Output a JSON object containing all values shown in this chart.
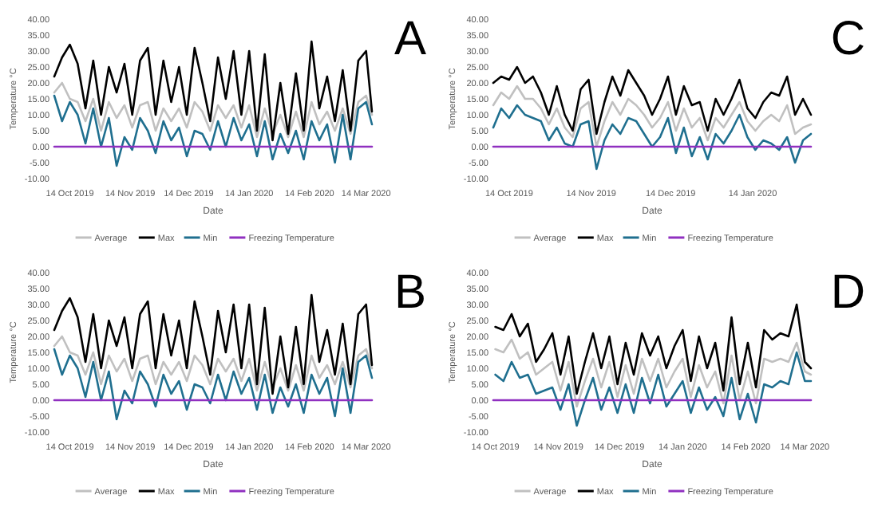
{
  "chart_data": [
    {
      "type": "line",
      "title": "A",
      "xlabel": "Date",
      "ylabel": "Temperature °C",
      "legend": "bottom",
      "grid": false,
      "x": [
        "2019-10-06",
        "2019-10-10",
        "2019-10-14",
        "2019-10-18",
        "2019-10-22",
        "2019-10-26",
        "2019-10-30",
        "2019-11-03",
        "2019-11-07",
        "2019-11-11",
        "2019-11-15",
        "2019-11-19",
        "2019-11-23",
        "2019-11-27",
        "2019-12-01",
        "2019-12-05",
        "2019-12-09",
        "2019-12-13",
        "2019-12-17",
        "2019-12-21",
        "2019-12-25",
        "2019-12-29",
        "2020-01-02",
        "2020-01-06",
        "2020-01-10",
        "2020-01-14",
        "2020-01-18",
        "2020-01-22",
        "2020-01-26",
        "2020-01-30",
        "2020-02-03",
        "2020-02-07",
        "2020-02-11",
        "2020-02-15",
        "2020-02-19",
        "2020-02-23",
        "2020-02-27",
        "2020-03-02",
        "2020-03-06",
        "2020-03-10",
        "2020-03-14",
        "2020-03-17"
      ],
      "xlim": [
        "2019-10-06",
        "2020-03-17"
      ],
      "xticks": [
        {
          "value": "2019-10-14",
          "label": "14 Oct 2019"
        },
        {
          "value": "2019-11-14",
          "label": "14 Nov 2019"
        },
        {
          "value": "2019-12-14",
          "label": "14 Dec 2019"
        },
        {
          "value": "2020-01-14",
          "label": "14 Jan 2020"
        },
        {
          "value": "2020-02-14",
          "label": "14 Feb 2020"
        },
        {
          "value": "2020-03-14",
          "label": "14 Mar 2020"
        }
      ],
      "ylim": [
        -10,
        40
      ],
      "yticks": [
        {
          "value": -10,
          "label": "-10.00"
        },
        {
          "value": -5,
          "label": "-5.00"
        },
        {
          "value": 0,
          "label": "0.00"
        },
        {
          "value": 5,
          "label": "5.00"
        },
        {
          "value": 10,
          "label": "10.00"
        },
        {
          "value": 15,
          "label": "15.00"
        },
        {
          "value": 20,
          "label": "20.00"
        },
        {
          "value": 25,
          "label": "25.00"
        },
        {
          "value": 30,
          "label": "30.00"
        },
        {
          "value": 35,
          "label": "35.00"
        },
        {
          "value": 40,
          "label": "40.00"
        }
      ],
      "series": [
        {
          "name": "Average",
          "color": "#c0c0c0",
          "values": [
            17,
            20,
            15,
            14,
            8,
            15,
            5,
            14,
            9,
            13,
            6,
            13,
            14,
            5,
            12,
            8,
            12,
            6,
            14,
            11,
            5,
            13,
            9,
            13,
            6,
            13,
            3,
            12,
            4,
            10,
            3,
            11,
            3,
            14,
            7,
            11,
            5,
            12,
            4,
            14,
            16,
            10
          ]
        },
        {
          "name": "Max",
          "color": "#000000",
          "values": [
            22,
            28,
            32,
            26,
            12,
            27,
            10,
            25,
            17,
            26,
            10,
            27,
            31,
            10,
            27,
            14,
            25,
            10,
            31,
            20,
            8,
            28,
            15,
            30,
            10,
            30,
            5,
            29,
            2,
            20,
            4,
            23,
            5,
            33,
            12,
            22,
            8,
            24,
            5,
            27,
            30,
            11
          ]
        },
        {
          "name": "Min",
          "color": "#1f6f8f",
          "values": [
            16,
            8,
            14,
            10,
            1,
            12,
            0,
            9,
            -6,
            3,
            -1,
            9,
            5,
            -2,
            8,
            2,
            6,
            -3,
            5,
            4,
            -1,
            8,
            0,
            9,
            2,
            7,
            -3,
            8,
            -4,
            4,
            -2,
            5,
            -4,
            8,
            2,
            7,
            -5,
            10,
            -4,
            12,
            14,
            7
          ]
        },
        {
          "name": "Freezing Temperature",
          "color": "#9030c0",
          "x": [
            "2019-10-06",
            "2020-03-17"
          ],
          "values": [
            0,
            0
          ]
        }
      ]
    },
    {
      "type": "line",
      "title": "C",
      "xlabel": "Date",
      "ylabel": "Temperature °C",
      "legend": "bottom",
      "grid": false,
      "x": [
        "2019-10-08",
        "2019-10-11",
        "2019-10-14",
        "2019-10-17",
        "2019-10-20",
        "2019-10-23",
        "2019-10-26",
        "2019-10-29",
        "2019-11-01",
        "2019-11-04",
        "2019-11-07",
        "2019-11-10",
        "2019-11-13",
        "2019-11-16",
        "2019-11-19",
        "2019-11-22",
        "2019-11-25",
        "2019-11-28",
        "2019-12-01",
        "2019-12-04",
        "2019-12-07",
        "2019-12-10",
        "2019-12-13",
        "2019-12-16",
        "2019-12-19",
        "2019-12-22",
        "2019-12-25",
        "2019-12-28",
        "2019-12-31",
        "2020-01-03",
        "2020-01-06",
        "2020-01-09",
        "2020-01-12",
        "2020-01-15",
        "2020-01-18",
        "2020-01-21",
        "2020-01-24",
        "2020-01-27",
        "2020-01-30",
        "2020-02-02",
        "2020-02-05"
      ],
      "xlim": [
        "2019-10-08",
        "2020-02-05"
      ],
      "xticks": [
        {
          "value": "2019-10-14",
          "label": "14 Oct 2019"
        },
        {
          "value": "2019-11-14",
          "label": "14 Nov 2019"
        },
        {
          "value": "2019-12-14",
          "label": "14 Dec 2019"
        },
        {
          "value": "2020-01-14",
          "label": "14 Jan 2020"
        }
      ],
      "ylim": [
        -10,
        40
      ],
      "yticks": [
        {
          "value": -10,
          "label": "-10.00"
        },
        {
          "value": -5,
          "label": "-5.00"
        },
        {
          "value": 0,
          "label": "0.00"
        },
        {
          "value": 5,
          "label": "5.00"
        },
        {
          "value": 10,
          "label": "10.00"
        },
        {
          "value": 15,
          "label": "15.00"
        },
        {
          "value": 20,
          "label": "20.00"
        },
        {
          "value": 25,
          "label": "25.00"
        },
        {
          "value": 30,
          "label": "30.00"
        },
        {
          "value": 35,
          "label": "35.00"
        },
        {
          "value": 40,
          "label": "40.00"
        }
      ],
      "series": [
        {
          "name": "Average",
          "color": "#c0c0c0",
          "values": [
            13,
            17,
            15,
            19,
            15,
            15,
            12,
            7,
            12,
            6,
            3,
            12,
            14,
            0,
            8,
            14,
            10,
            15,
            13,
            10,
            6,
            9,
            14,
            5,
            12,
            6,
            9,
            2,
            9,
            6,
            10,
            14,
            8,
            5,
            8,
            10,
            8,
            13,
            4,
            6,
            7
          ]
        },
        {
          "name": "Max",
          "color": "#000000",
          "values": [
            20,
            22,
            21,
            25,
            20,
            22,
            17,
            10,
            19,
            10,
            5,
            18,
            21,
            4,
            14,
            22,
            16,
            24,
            20,
            16,
            10,
            15,
            22,
            10,
            19,
            13,
            14,
            5,
            15,
            10,
            15,
            21,
            12,
            9,
            14,
            17,
            16,
            22,
            10,
            15,
            10
          ]
        },
        {
          "name": "Min",
          "color": "#1f6f8f",
          "values": [
            6,
            12,
            9,
            13,
            10,
            9,
            8,
            2,
            6,
            1,
            0,
            7,
            8,
            -7,
            2,
            7,
            4,
            9,
            8,
            4,
            0,
            3,
            9,
            -2,
            6,
            -3,
            3,
            -4,
            4,
            1,
            5,
            10,
            3,
            -1,
            2,
            1,
            -1,
            3,
            -5,
            2,
            4
          ]
        },
        {
          "name": "Freezing Temperature",
          "color": "#9030c0",
          "x": [
            "2019-10-08",
            "2020-02-05"
          ],
          "values": [
            0,
            0
          ]
        }
      ]
    },
    {
      "type": "line",
      "title": "B",
      "xlabel": "Date",
      "ylabel": "Temperature °C",
      "legend": "bottom",
      "grid": false,
      "x": [
        "2019-10-06",
        "2019-10-10",
        "2019-10-14",
        "2019-10-18",
        "2019-10-22",
        "2019-10-26",
        "2019-10-30",
        "2019-11-03",
        "2019-11-07",
        "2019-11-11",
        "2019-11-15",
        "2019-11-19",
        "2019-11-23",
        "2019-11-27",
        "2019-12-01",
        "2019-12-05",
        "2019-12-09",
        "2019-12-13",
        "2019-12-17",
        "2019-12-21",
        "2019-12-25",
        "2019-12-29",
        "2020-01-02",
        "2020-01-06",
        "2020-01-10",
        "2020-01-14",
        "2020-01-18",
        "2020-01-22",
        "2020-01-26",
        "2020-01-30",
        "2020-02-03",
        "2020-02-07",
        "2020-02-11",
        "2020-02-15",
        "2020-02-19",
        "2020-02-23",
        "2020-02-27",
        "2020-03-02",
        "2020-03-06",
        "2020-03-10",
        "2020-03-14",
        "2020-03-17"
      ],
      "xlim": [
        "2019-10-06",
        "2020-03-17"
      ],
      "xticks": [
        {
          "value": "2019-10-14",
          "label": "14 Oct 2019"
        },
        {
          "value": "2019-11-14",
          "label": "14 Nov 2019"
        },
        {
          "value": "2019-12-14",
          "label": "14 Dec 2019"
        },
        {
          "value": "2020-01-14",
          "label": "14 Jan 2020"
        },
        {
          "value": "2020-02-14",
          "label": "14 Feb 2020"
        },
        {
          "value": "2020-03-14",
          "label": "14 Mar 2020"
        }
      ],
      "ylim": [
        -10,
        40
      ],
      "yticks": [
        {
          "value": -10,
          "label": "-10.00"
        },
        {
          "value": -5,
          "label": "-5.00"
        },
        {
          "value": 0,
          "label": "0.00"
        },
        {
          "value": 5,
          "label": "5.00"
        },
        {
          "value": 10,
          "label": "10.00"
        },
        {
          "value": 15,
          "label": "15.00"
        },
        {
          "value": 20,
          "label": "20.00"
        },
        {
          "value": 25,
          "label": "25.00"
        },
        {
          "value": 30,
          "label": "30.00"
        },
        {
          "value": 35,
          "label": "35.00"
        },
        {
          "value": 40,
          "label": "40.00"
        }
      ],
      "series": [
        {
          "name": "Average",
          "color": "#c0c0c0",
          "values": [
            17,
            20,
            15,
            14,
            8,
            15,
            5,
            14,
            9,
            13,
            6,
            13,
            14,
            5,
            12,
            8,
            12,
            6,
            14,
            11,
            5,
            13,
            9,
            13,
            6,
            13,
            3,
            12,
            4,
            10,
            3,
            11,
            3,
            14,
            7,
            11,
            5,
            12,
            4,
            14,
            16,
            10
          ]
        },
        {
          "name": "Max",
          "color": "#000000",
          "values": [
            22,
            28,
            32,
            26,
            12,
            27,
            10,
            25,
            17,
            26,
            10,
            27,
            31,
            10,
            27,
            14,
            25,
            10,
            31,
            20,
            8,
            28,
            15,
            30,
            10,
            30,
            5,
            29,
            2,
            20,
            4,
            23,
            5,
            33,
            12,
            22,
            8,
            24,
            5,
            27,
            30,
            11
          ]
        },
        {
          "name": "Min",
          "color": "#1f6f8f",
          "values": [
            16,
            8,
            14,
            10,
            1,
            12,
            0,
            9,
            -6,
            3,
            -1,
            9,
            5,
            -2,
            8,
            2,
            6,
            -3,
            5,
            4,
            -1,
            8,
            0,
            9,
            2,
            7,
            -3,
            8,
            -4,
            4,
            -2,
            5,
            -4,
            8,
            2,
            7,
            -5,
            10,
            -4,
            12,
            14,
            7
          ]
        },
        {
          "name": "Freezing Temperature",
          "color": "#9030c0",
          "x": [
            "2019-10-06",
            "2020-03-17"
          ],
          "values": [
            0,
            0
          ]
        }
      ]
    },
    {
      "type": "line",
      "title": "D",
      "xlabel": "Date",
      "ylabel": "Temperature °C",
      "legend": "bottom",
      "grid": false,
      "x": [
        "2019-10-14",
        "2019-10-18",
        "2019-10-22",
        "2019-10-26",
        "2019-10-30",
        "2019-11-03",
        "2019-11-07",
        "2019-11-11",
        "2019-11-15",
        "2019-11-19",
        "2019-11-23",
        "2019-11-27",
        "2019-12-01",
        "2019-12-05",
        "2019-12-09",
        "2019-12-13",
        "2019-12-17",
        "2019-12-21",
        "2019-12-25",
        "2019-12-29",
        "2020-01-02",
        "2020-01-06",
        "2020-01-10",
        "2020-01-14",
        "2020-01-18",
        "2020-01-22",
        "2020-01-26",
        "2020-01-30",
        "2020-02-03",
        "2020-02-07",
        "2020-02-11",
        "2020-02-15",
        "2020-02-19",
        "2020-02-23",
        "2020-02-27",
        "2020-03-02",
        "2020-03-06",
        "2020-03-10",
        "2020-03-14",
        "2020-03-17"
      ],
      "xlim": [
        "2019-10-13",
        "2020-03-17"
      ],
      "xticks": [
        {
          "value": "2019-10-14",
          "label": "14 Oct 2019"
        },
        {
          "value": "2019-11-14",
          "label": "14 Nov 2019"
        },
        {
          "value": "2019-12-14",
          "label": "14 Dec 2019"
        },
        {
          "value": "2020-01-14",
          "label": "14 Jan 2020"
        },
        {
          "value": "2020-02-14",
          "label": "14 Feb 2020"
        },
        {
          "value": "2020-03-14",
          "label": "14 Mar 2020"
        }
      ],
      "ylim": [
        -10,
        40
      ],
      "yticks": [
        {
          "value": -10,
          "label": "-10.00"
        },
        {
          "value": -5,
          "label": "-5.00"
        },
        {
          "value": 0,
          "label": "0.00"
        },
        {
          "value": 5,
          "label": "5.00"
        },
        {
          "value": 10,
          "label": "10.00"
        },
        {
          "value": 15,
          "label": "15.00"
        },
        {
          "value": 20,
          "label": "20.00"
        },
        {
          "value": 25,
          "label": "25.00"
        },
        {
          "value": 30,
          "label": "30.00"
        },
        {
          "value": 35,
          "label": "35.00"
        },
        {
          "value": 40,
          "label": "40.00"
        }
      ],
      "series": [
        {
          "name": "Average",
          "color": "#c0c0c0",
          "values": [
            16,
            15,
            19,
            13,
            15,
            8,
            10,
            12,
            3,
            12,
            -2,
            6,
            13,
            4,
            12,
            1,
            11,
            2,
            13,
            6,
            13,
            4,
            9,
            13,
            1,
            11,
            4,
            9,
            -1,
            14,
            0,
            9,
            -1,
            13,
            12,
            13,
            12,
            18,
            9,
            8
          ]
        },
        {
          "name": "Max",
          "color": "#000000",
          "values": [
            23,
            22,
            27,
            20,
            24,
            12,
            16,
            21,
            8,
            20,
            2,
            12,
            21,
            10,
            20,
            5,
            18,
            8,
            21,
            14,
            20,
            10,
            17,
            22,
            6,
            20,
            10,
            18,
            3,
            26,
            5,
            18,
            4,
            22,
            19,
            21,
            20,
            30,
            12,
            10
          ]
        },
        {
          "name": "Min",
          "color": "#1f6f8f",
          "values": [
            8,
            6,
            12,
            7,
            8,
            2,
            3,
            4,
            -3,
            5,
            -8,
            0,
            7,
            -3,
            4,
            -4,
            5,
            -4,
            7,
            -1,
            8,
            -2,
            2,
            6,
            -4,
            4,
            -3,
            1,
            -5,
            7,
            -6,
            2,
            -7,
            5,
            4,
            6,
            5,
            15,
            6,
            6
          ]
        },
        {
          "name": "Freezing Temperature",
          "color": "#9030c0",
          "x": [
            "2019-10-13",
            "2020-03-17"
          ],
          "values": [
            0,
            0
          ]
        }
      ]
    }
  ]
}
